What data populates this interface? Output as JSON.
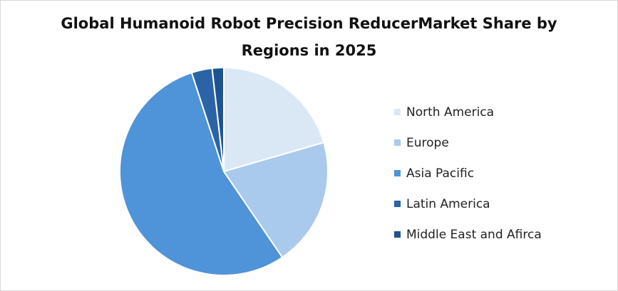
{
  "chart_data": {
    "type": "pie",
    "title_line1": "Global Humanoid Robot Precision ReducerMarket Share by",
    "title_line2": "Regions in 2025",
    "legend_position": "right",
    "slices": [
      {
        "name": "North America",
        "value": 20.5,
        "color": "#dae8f6"
      },
      {
        "name": "Europe",
        "value": 20.0,
        "color": "#a9caec"
      },
      {
        "name": "Asia Pacific",
        "value": 54.5,
        "color": "#4f93d8"
      },
      {
        "name": "Latin America",
        "value": 3.2,
        "color": "#2a64a6"
      },
      {
        "name": "Middle East and Afirca",
        "value": 1.8,
        "color": "#1f5390"
      }
    ]
  }
}
